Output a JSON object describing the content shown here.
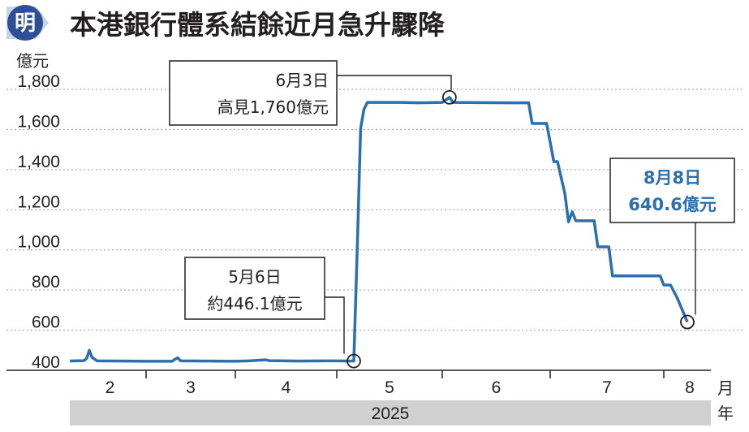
{
  "header": {
    "logo_char": "明",
    "title": "本港銀行體系結餘近月急升驟降"
  },
  "chart_data": {
    "type": "line",
    "title": "本港銀行體系結餘近月急升驟降",
    "ylabel": "億元",
    "xlabel": "月",
    "year_label": "年",
    "year": "2025",
    "ylim": [
      400,
      1800
    ],
    "y_ticks": [
      400,
      600,
      800,
      1000,
      1200,
      1400,
      1600,
      1800
    ],
    "y_tick_labels": [
      "400",
      "600",
      "800",
      "1,000",
      "1,200",
      "1,400",
      "1,600",
      "1,800"
    ],
    "months": [
      "2",
      "3",
      "4",
      "5",
      "6",
      "7",
      "8"
    ],
    "grid": true,
    "color": "#2a6fae",
    "series": [
      {
        "points": [
          [
            "2025-01-21",
            446
          ],
          [
            "2025-01-31",
            447
          ],
          [
            "2025-02-05",
            448
          ],
          [
            "2025-02-06",
            460
          ],
          [
            "2025-02-07",
            500
          ],
          [
            "2025-02-08",
            465
          ],
          [
            "2025-02-10",
            447
          ],
          [
            "2025-02-20",
            446
          ],
          [
            "2025-03-01",
            445
          ],
          [
            "2025-03-10",
            445
          ],
          [
            "2025-03-11",
            455
          ],
          [
            "2025-03-12",
            462
          ],
          [
            "2025-03-13",
            447
          ],
          [
            "2025-03-22",
            446
          ],
          [
            "2025-04-01",
            445
          ],
          [
            "2025-04-05",
            447
          ],
          [
            "2025-04-10",
            452
          ],
          [
            "2025-04-11",
            448
          ],
          [
            "2025-04-20",
            446
          ],
          [
            "2025-04-30",
            447
          ],
          [
            "2025-05-06",
            446.1
          ],
          [
            "2025-05-07",
            1000
          ],
          [
            "2025-05-08",
            1605
          ],
          [
            "2025-05-09",
            1700
          ],
          [
            "2025-05-10",
            1735
          ],
          [
            "2025-05-20",
            1735
          ],
          [
            "2025-05-25",
            1733
          ],
          [
            "2025-06-01",
            1735
          ],
          [
            "2025-06-03",
            1760
          ],
          [
            "2025-06-04",
            1735
          ],
          [
            "2025-06-20",
            1733
          ],
          [
            "2025-06-25",
            1733
          ],
          [
            "2025-06-26",
            1630
          ],
          [
            "2025-06-30",
            1630
          ],
          [
            "2025-07-02",
            1440
          ],
          [
            "2025-07-03",
            1440
          ],
          [
            "2025-07-05",
            1280
          ],
          [
            "2025-07-06",
            1140
          ],
          [
            "2025-07-07",
            1190
          ],
          [
            "2025-07-08",
            1145
          ],
          [
            "2025-07-13",
            1145
          ],
          [
            "2025-07-14",
            1015
          ],
          [
            "2025-07-17",
            1015
          ],
          [
            "2025-07-18",
            870
          ],
          [
            "2025-07-31",
            870
          ],
          [
            "2025-08-01",
            825
          ],
          [
            "2025-08-03",
            825
          ],
          [
            "2025-08-05",
            760
          ],
          [
            "2025-08-08",
            640.6
          ]
        ]
      }
    ],
    "annotations": [
      {
        "id": "may6",
        "date": "2025-05-06",
        "value": 446.1,
        "line1": "5月6日",
        "line2": "約446.1億元",
        "highlight": false
      },
      {
        "id": "jun3",
        "date": "2025-06-03",
        "value": 1760,
        "line1": "6月3日",
        "line2": "高見1,760億元",
        "highlight": false
      },
      {
        "id": "aug8",
        "date": "2025-08-08",
        "value": 640.6,
        "line1": "8月8日",
        "line2": "640.6億元",
        "highlight": true
      }
    ]
  }
}
